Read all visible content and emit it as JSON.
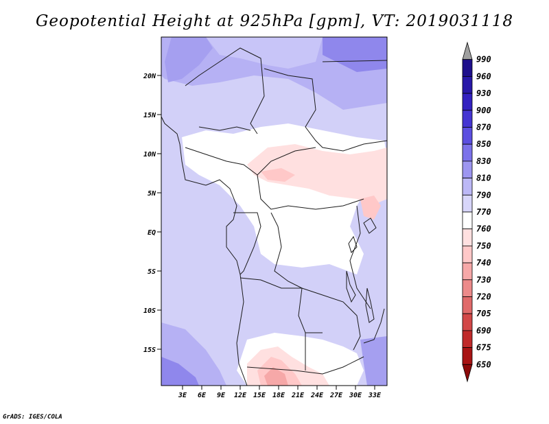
{
  "title": "Geopotential Height at 925hPa [gpm], VT: 2019031118",
  "credit": "GrADS: IGES/COLA",
  "lat_ticks": [
    "20N",
    "15N",
    "10N",
    "5N",
    "EQ",
    "5S",
    "10S",
    "15S"
  ],
  "lon_ticks": [
    "3E",
    "6E",
    "9E",
    "12E",
    "15E",
    "18E",
    "21E",
    "24E",
    "27E",
    "30E",
    "33E"
  ],
  "colorbar": {
    "levels": [
      "990",
      "960",
      "930",
      "900",
      "870",
      "850",
      "830",
      "810",
      "790",
      "770",
      "760",
      "750",
      "740",
      "730",
      "720",
      "705",
      "690",
      "675",
      "650"
    ],
    "colors": [
      "#a0a0a0",
      "#1e0f8c",
      "#2818a8",
      "#3321c0",
      "#4535d2",
      "#5c4fe0",
      "#7c72ea",
      "#9d96f0",
      "#bcb8f6",
      "#d8d6fa",
      "#ffffff",
      "#ffe0e0",
      "#ffc8c8",
      "#f6a8a8",
      "#ec8a8a",
      "#e06a6a",
      "#d24848",
      "#c02a2a",
      "#a81414",
      "#8c0a0a"
    ]
  }
}
